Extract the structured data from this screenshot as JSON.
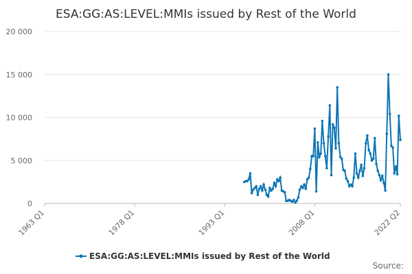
{
  "chart_data": {
    "type": "line",
    "title": "ESA:GG:AS:LEVEL:MMIs issued by Rest of the World",
    "source": "Source:",
    "x": [
      "1996 Q2",
      "1996 Q3",
      "1996 Q4",
      "1997 Q1",
      "1997 Q2",
      "1997 Q3",
      "1997 Q4",
      "1998 Q1",
      "1998 Q2",
      "1998 Q3",
      "1998 Q4",
      "1999 Q1",
      "1999 Q2",
      "1999 Q3",
      "1999 Q4",
      "2000 Q1",
      "2000 Q2",
      "2000 Q3",
      "2000 Q4",
      "2001 Q1",
      "2001 Q2",
      "2001 Q3",
      "2001 Q4",
      "2002 Q1",
      "2002 Q2",
      "2002 Q3",
      "2002 Q4",
      "2003 Q1",
      "2003 Q2",
      "2003 Q3",
      "2003 Q4",
      "2004 Q1",
      "2004 Q2",
      "2004 Q3",
      "2004 Q4",
      "2005 Q1",
      "2005 Q2",
      "2005 Q3",
      "2005 Q4",
      "2006 Q1",
      "2006 Q2",
      "2006 Q3",
      "2006 Q4",
      "2007 Q1",
      "2007 Q2",
      "2007 Q3",
      "2007 Q4",
      "2008 Q1",
      "2008 Q2",
      "2008 Q3",
      "2008 Q4",
      "2009 Q1",
      "2009 Q2",
      "2009 Q3",
      "2009 Q4",
      "2010 Q1",
      "2010 Q2",
      "2010 Q3",
      "2010 Q4",
      "2011 Q1",
      "2011 Q2",
      "2011 Q3",
      "2011 Q4",
      "2012 Q1",
      "2012 Q2",
      "2012 Q3",
      "2012 Q4",
      "2013 Q1",
      "2013 Q2",
      "2013 Q3",
      "2013 Q4",
      "2014 Q1",
      "2014 Q2",
      "2014 Q3",
      "2014 Q4",
      "2015 Q1",
      "2015 Q2",
      "2015 Q3",
      "2015 Q4",
      "2016 Q1",
      "2016 Q2",
      "2016 Q3",
      "2016 Q4",
      "2017 Q1",
      "2017 Q2",
      "2017 Q3",
      "2017 Q4",
      "2018 Q1",
      "2018 Q2",
      "2018 Q3",
      "2018 Q4",
      "2019 Q1",
      "2019 Q2",
      "2019 Q3",
      "2019 Q4",
      "2020 Q1",
      "2020 Q2",
      "2020 Q3",
      "2020 Q4",
      "2021 Q1",
      "2021 Q2",
      "2021 Q3",
      "2021 Q4",
      "2022 Q1",
      "2022 Q2"
    ],
    "series": [
      {
        "name": "ESA:GG:AS:LEVEL:MMIs issued by Rest of the World",
        "color": "#0b74b5",
        "values": [
          2500,
          2600,
          2600,
          2800,
          3500,
          1200,
          1600,
          1800,
          2000,
          1000,
          1700,
          2000,
          1500,
          2200,
          1600,
          1000,
          800,
          1800,
          1500,
          1700,
          2400,
          2000,
          2800,
          2600,
          3000,
          1500,
          1400,
          1300,
          300,
          300,
          400,
          300,
          200,
          400,
          100,
          300,
          700,
          1600,
          2000,
          1800,
          2200,
          1700,
          2800,
          3000,
          4000,
          5500,
          5500,
          8700,
          1400,
          7100,
          5400,
          5800,
          9600,
          7000,
          5500,
          4100,
          7800,
          11400,
          3300,
          9200,
          8800,
          6400,
          13500,
          7000,
          5400,
          5200,
          3900,
          3800,
          2900,
          2600,
          2000,
          2200,
          2000,
          3000,
          5800,
          3500,
          3000,
          3800,
          4500,
          3200,
          4100,
          7000,
          7900,
          6200,
          5800,
          5000,
          5200,
          7600,
          4600,
          3800,
          3300,
          2700,
          3200,
          2400,
          1500,
          8100,
          15000,
          10400,
          6700,
          6500,
          3500,
          4300,
          3400,
          10200,
          7400
        ]
      }
    ],
    "xlim": [
      "1963 Q1",
      "2022 Q2"
    ],
    "xticks": [
      "1963 Q1",
      "1978 Q1",
      "1993 Q1",
      "2008 Q1",
      "2022 Q2"
    ],
    "ylim": [
      0,
      20000
    ],
    "yticks": [
      0,
      {
        "value": 5000,
        "label": "5 000"
      },
      {
        "value": 10000,
        "label": "10 000"
      },
      {
        "value": 15000,
        "label": "15 000"
      },
      {
        "value": 20000,
        "label": "20 000"
      }
    ],
    "grid": true,
    "legend": "bottom"
  }
}
